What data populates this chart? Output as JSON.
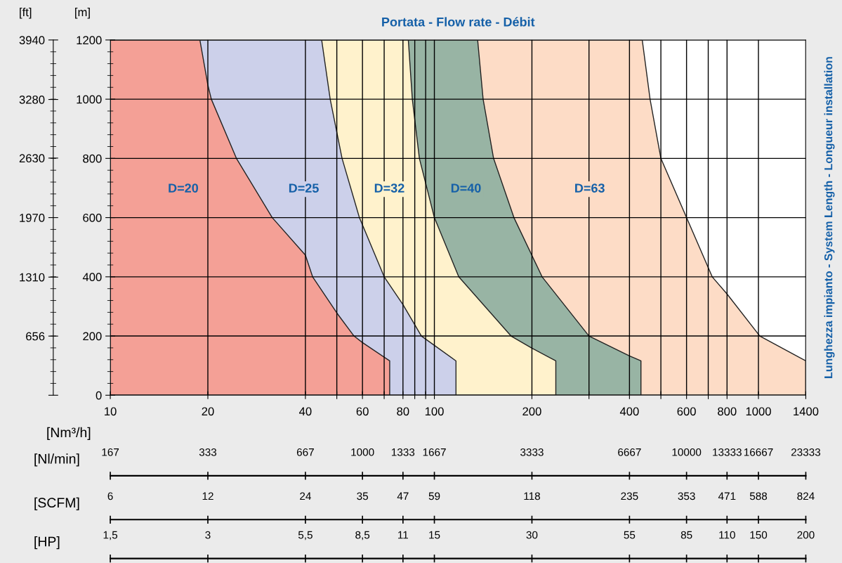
{
  "chart_data": [
    {
      "type": "area",
      "title": "Portata - Flow rate - Débit",
      "xlabel": "[Nm³/h]",
      "ylabel": "[m]",
      "y2label": "[ft]",
      "annotations": [
        "Lunghezza impianto - System Length - Longueur installation"
      ],
      "log": "x",
      "grid": true,
      "xlim": [
        10,
        1400
      ],
      "xticks": [
        10,
        20,
        40,
        {
          "value": 50,
          "label": null
        },
        60,
        {
          "value": 70,
          "label": null
        },
        80,
        {
          "value": 87,
          "label": null
        },
        {
          "value": 94,
          "label": null
        },
        100,
        200,
        {
          "value": 300,
          "label": null
        },
        400,
        {
          "value": 500,
          "label": null
        },
        600,
        {
          "value": 700,
          "label": null
        },
        800,
        1000,
        1400
      ],
      "ylim": [
        0,
        1200
      ],
      "yticks": [
        0,
        200,
        400,
        600,
        800,
        1000,
        1200
      ],
      "y2lim": [
        0,
        3940
      ],
      "y2ticks": [
        {
          "value": 0,
          "label": null
        },
        656,
        1310,
        1970,
        2630,
        3280,
        3940
      ],
      "series": [
        {
          "name": "D=20",
          "color": "#f4a096",
          "x": [
            10,
            18.9,
            20,
            20.5,
            24.5,
            31.6,
            40,
            42.1,
            50,
            56.5,
            60,
            72.8,
            72.8
          ],
          "values": [
            1200,
            1200,
            1048,
            1000,
            800,
            600,
            473,
            400,
            278,
            200,
            178,
            116,
            0
          ]
        },
        {
          "name": "D=25",
          "color": "#ccd0ea",
          "x": [
            10,
            44.9,
            47.7,
            51.9,
            58.7,
            70,
            80,
            91.2,
            116.6,
            116.6
          ],
          "values": [
            1200,
            1200,
            1000,
            800,
            600,
            400,
            306,
            200,
            116,
            0
          ]
        },
        {
          "name": "D=32",
          "color": "#fff2cc",
          "x": [
            10,
            83.1,
            85.5,
            89.9,
            100,
            118.9,
            172.4,
            200,
            237,
            237
          ],
          "values": [
            1200,
            1200,
            1000,
            800,
            600,
            400,
            200,
            159,
            116,
            0
          ]
        },
        {
          "name": "D=40",
          "color": "#98b4a4",
          "x": [
            10,
            136,
            141.4,
            152.3,
            176,
            215,
            300,
            400,
            434,
            434
          ],
          "values": [
            1200,
            1200,
            1000,
            800,
            600,
            400,
            200,
            133,
            116,
            0
          ]
        },
        {
          "name": "D=63",
          "color": "#fddcc6",
          "x": [
            10,
            438,
            463,
            500,
            600,
            720,
            800,
            1010,
            1400
          ],
          "values": [
            1200,
            1200,
            1000,
            800,
            600,
            400,
            342,
            200,
            116
          ]
        }
      ]
    },
    {
      "type": "other",
      "xlabel": "[Nl/min]",
      "annotations": [
        "167",
        "333",
        "667",
        "1000",
        "1333",
        "1667",
        "3333",
        "6667",
        "10000",
        "13333",
        "16667",
        "23333"
      ]
    },
    {
      "type": "other",
      "xlabel": "[SCFM]",
      "annotations": [
        "6",
        "12",
        "24",
        "35",
        "47",
        "59",
        "118",
        "235",
        "353",
        "471",
        "588",
        "824"
      ]
    },
    {
      "type": "other",
      "xlabel": "[HP]",
      "annotations": [
        "1,5",
        "3",
        "5,5",
        "8,5",
        "11",
        "15",
        "30",
        "55",
        "85",
        "110",
        "150",
        "200"
      ]
    }
  ]
}
